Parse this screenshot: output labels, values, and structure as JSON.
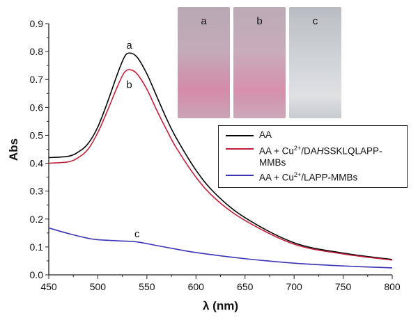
{
  "chart_data": {
    "type": "line",
    "title": "",
    "xlabel": "λ (nm)",
    "ylabel": "Abs",
    "xlim": [
      450,
      800
    ],
    "ylim": [
      0,
      0.9
    ],
    "xticks": [
      "450",
      "500",
      "550",
      "600",
      "650",
      "700",
      "750",
      "800"
    ],
    "yticks": [
      "0.0",
      "0.1",
      "0.2",
      "0.3",
      "0.4",
      "0.5",
      "0.6",
      "0.7",
      "0.8",
      "0.9"
    ],
    "grid": false,
    "legend_position": "right",
    "series": [
      {
        "name": "AA",
        "label": "a",
        "color": "#000000",
        "x": [
          450,
          470,
          480,
          490,
          500,
          510,
          520,
          527,
          532,
          540,
          550,
          560,
          570,
          580,
          600,
          620,
          650,
          700,
          750,
          800
        ],
        "y": [
          0.42,
          0.425,
          0.44,
          0.47,
          0.53,
          0.62,
          0.72,
          0.78,
          0.795,
          0.78,
          0.72,
          0.64,
          0.56,
          0.49,
          0.375,
          0.29,
          0.205,
          0.115,
          0.078,
          0.055
        ]
      },
      {
        "name": "AA + Cu²⁺/DAHSSKLQLAPP-MMBs",
        "label": "b",
        "color": "#c0203a",
        "x": [
          450,
          470,
          480,
          490,
          500,
          510,
          520,
          527,
          533,
          540,
          550,
          560,
          570,
          580,
          600,
          620,
          650,
          700,
          750,
          800
        ],
        "y": [
          0.4,
          0.405,
          0.42,
          0.45,
          0.51,
          0.59,
          0.675,
          0.725,
          0.735,
          0.72,
          0.665,
          0.59,
          0.52,
          0.455,
          0.35,
          0.272,
          0.195,
          0.11,
          0.075,
          0.053
        ]
      },
      {
        "name": "AA + Cu²⁺/LAPP-MMBs",
        "label": "c",
        "color": "#3a34b8",
        "x": [
          450,
          470,
          490,
          500,
          520,
          540,
          560,
          580,
          600,
          650,
          700,
          750,
          800
        ],
        "y": [
          0.168,
          0.148,
          0.131,
          0.126,
          0.122,
          0.118,
          0.105,
          0.092,
          0.08,
          0.058,
          0.042,
          0.032,
          0.025
        ]
      }
    ]
  },
  "legend": {
    "items": [
      {
        "pre": "AA",
        "color": "#000000"
      },
      {
        "pre": "AA + Cu",
        "sup": "2+",
        "mid": "/DA",
        "ital": "H",
        "post": "SSKLQLAPP-MMBs",
        "color": "#c0203a"
      },
      {
        "pre": "AA + Cu",
        "sup": "2+",
        "mid": "/LAPP-MMBs",
        "color": "#3a34b8"
      }
    ]
  },
  "photos": [
    {
      "label": "a",
      "tint": "#d77aa0"
    },
    {
      "label": "b",
      "tint": "#d98aa8"
    },
    {
      "label": "c",
      "tint": "#c9ccd0"
    }
  ]
}
